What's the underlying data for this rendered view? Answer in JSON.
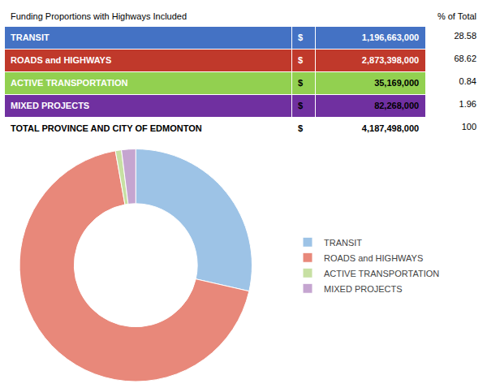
{
  "chart_data": [
    {
      "type": "table",
      "title": "Funding Proportions with Highways Included",
      "pct_label": "% of Total",
      "currency": "$",
      "categories": [
        "TRANSIT",
        "ROADS and HIGHWAYS",
        "ACTIVE TRANSPORTATION",
        "MIXED PROJECTS"
      ],
      "amounts": [
        "1,196,663,000",
        "2,873,398,000",
        "35,169,000",
        "82,268,000"
      ],
      "percentages": [
        28.58,
        68.62,
        0.84,
        1.96
      ],
      "colors": [
        "#4472C4",
        "#C0392B",
        "#92D050",
        "#7030A0"
      ],
      "label_color": "white",
      "amount_colors": [
        "white",
        "white",
        "black",
        "black"
      ],
      "total_label": "TOTAL PROVINCE AND CITY OF EDMONTON",
      "total_amount": "4,187,498,000",
      "total_percentage": 100
    },
    {
      "type": "pie",
      "categories": [
        "TRANSIT",
        "ROADS and HIGHWAYS",
        "ACTIVE TRANSPORTATION",
        "MIXED PROJECTS"
      ],
      "values": [
        1196663000,
        2873398000,
        35169000,
        82268000
      ],
      "colors": [
        "#9DC3E6",
        "#E8887A",
        "#C7E0A3",
        "#C5A5D0"
      ],
      "legend": "right"
    }
  ]
}
